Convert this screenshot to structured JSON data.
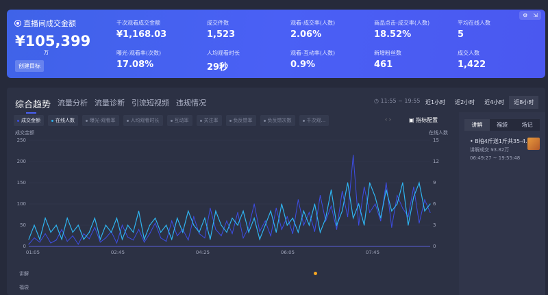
{
  "summary": {
    "title": "直播间成交金额",
    "value": "¥105,399",
    "unit": "万",
    "goal_button": "创建目标",
    "metrics": [
      {
        "label": "千次观看成交金额",
        "value": "¥1,168.03"
      },
      {
        "label": "成交件数",
        "value": "1,523"
      },
      {
        "label": "观看-成交率(人数)",
        "value": "2.06%"
      },
      {
        "label": "商品点击-成交率(人数)",
        "value": "18.52%"
      },
      {
        "label": "平均在线人数",
        "value": "5"
      },
      {
        "label": "曝光-观看率(次数)",
        "value": "17.08%"
      },
      {
        "label": "人均观看时长",
        "value": "29秒"
      },
      {
        "label": "观看-互动率(人数)",
        "value": "0.9%"
      },
      {
        "label": "新增粉丝数",
        "value": "461"
      },
      {
        "label": "成交人数",
        "value": "1,422"
      }
    ]
  },
  "tabs": [
    "综合趋势",
    "流量分析",
    "流量诊断",
    "引流短视频",
    "违规情况"
  ],
  "time_range": "11:55 ~ 19:55",
  "time_buttons": [
    "近1小时",
    "近2小时",
    "近4小时",
    "近8小时"
  ],
  "chips": [
    "成交金额",
    "在线人数",
    "曝光-观看率",
    "人均观看时长",
    "互动率",
    "关注率",
    "负反馈率",
    "负反馈次数",
    "千次观..."
  ],
  "config_label": "指标配置",
  "side": {
    "tabs": [
      "讲解",
      "福袋",
      "场记"
    ],
    "item": {
      "title": "B柏4斤送1斤共35-4...",
      "sub": "讲解成交 ¥3.82万",
      "time": "06:49:27 ~ 19:55:48"
    }
  },
  "timeline_rows": [
    "讲解",
    "福袋"
  ],
  "colors": {
    "sales": "#3d4de6",
    "online": "#2fb4f0"
  },
  "chart_data": {
    "type": "line",
    "ylabel_left": "成交金额",
    "ylabel_right": "在线人数",
    "ylim_left": [
      0,
      250
    ],
    "ylim_right": [
      0,
      15
    ],
    "yticks_left": [
      0,
      50,
      100,
      150,
      200,
      250
    ],
    "yticks_right": [
      0,
      3,
      6,
      9,
      12,
      15
    ],
    "xticks": [
      "01:05",
      "02:45",
      "04:25",
      "06:05",
      "07:45"
    ],
    "series": [
      {
        "name": "成交金额",
        "axis": "left",
        "values": [
          5,
          20,
          10,
          30,
          8,
          15,
          40,
          12,
          25,
          5,
          30,
          18,
          45,
          10,
          20,
          35,
          8,
          50,
          22,
          15,
          40,
          10,
          30,
          55,
          20,
          12,
          60,
          25,
          40,
          15,
          70,
          30,
          20,
          90,
          40,
          25,
          60,
          30,
          80,
          20,
          45,
          100,
          35,
          60,
          25,
          90,
          40,
          70,
          30,
          110,
          50,
          80,
          35,
          120,
          60,
          95,
          40,
          130,
          70,
          215,
          50,
          140,
          80,
          100,
          60,
          150,
          45,
          120,
          90,
          70,
          140,
          55,
          110,
          80
        ]
      },
      {
        "name": "在线人数",
        "axis": "right",
        "values": [
          1,
          3,
          1,
          4,
          2,
          3,
          1,
          4,
          2,
          3,
          1,
          2,
          4,
          1,
          3,
          2,
          4,
          1,
          3,
          2,
          5,
          1,
          3,
          4,
          2,
          3,
          1,
          4,
          2,
          5,
          3,
          2,
          4,
          1,
          5,
          3,
          2,
          4,
          3,
          5,
          2,
          4,
          1,
          3,
          5,
          2,
          6,
          3,
          4,
          2,
          5,
          3,
          6,
          2,
          4,
          8,
          3,
          5,
          9,
          4,
          6,
          3,
          9,
          7,
          4,
          8,
          5,
          6,
          9,
          3,
          7,
          9,
          5,
          6
        ]
      }
    ]
  }
}
